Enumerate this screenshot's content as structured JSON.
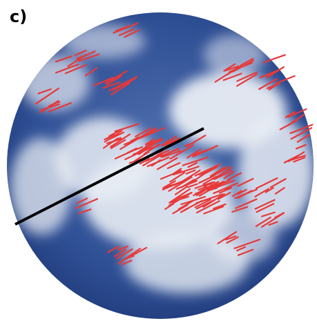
{
  "panel_label": "c)"
}
